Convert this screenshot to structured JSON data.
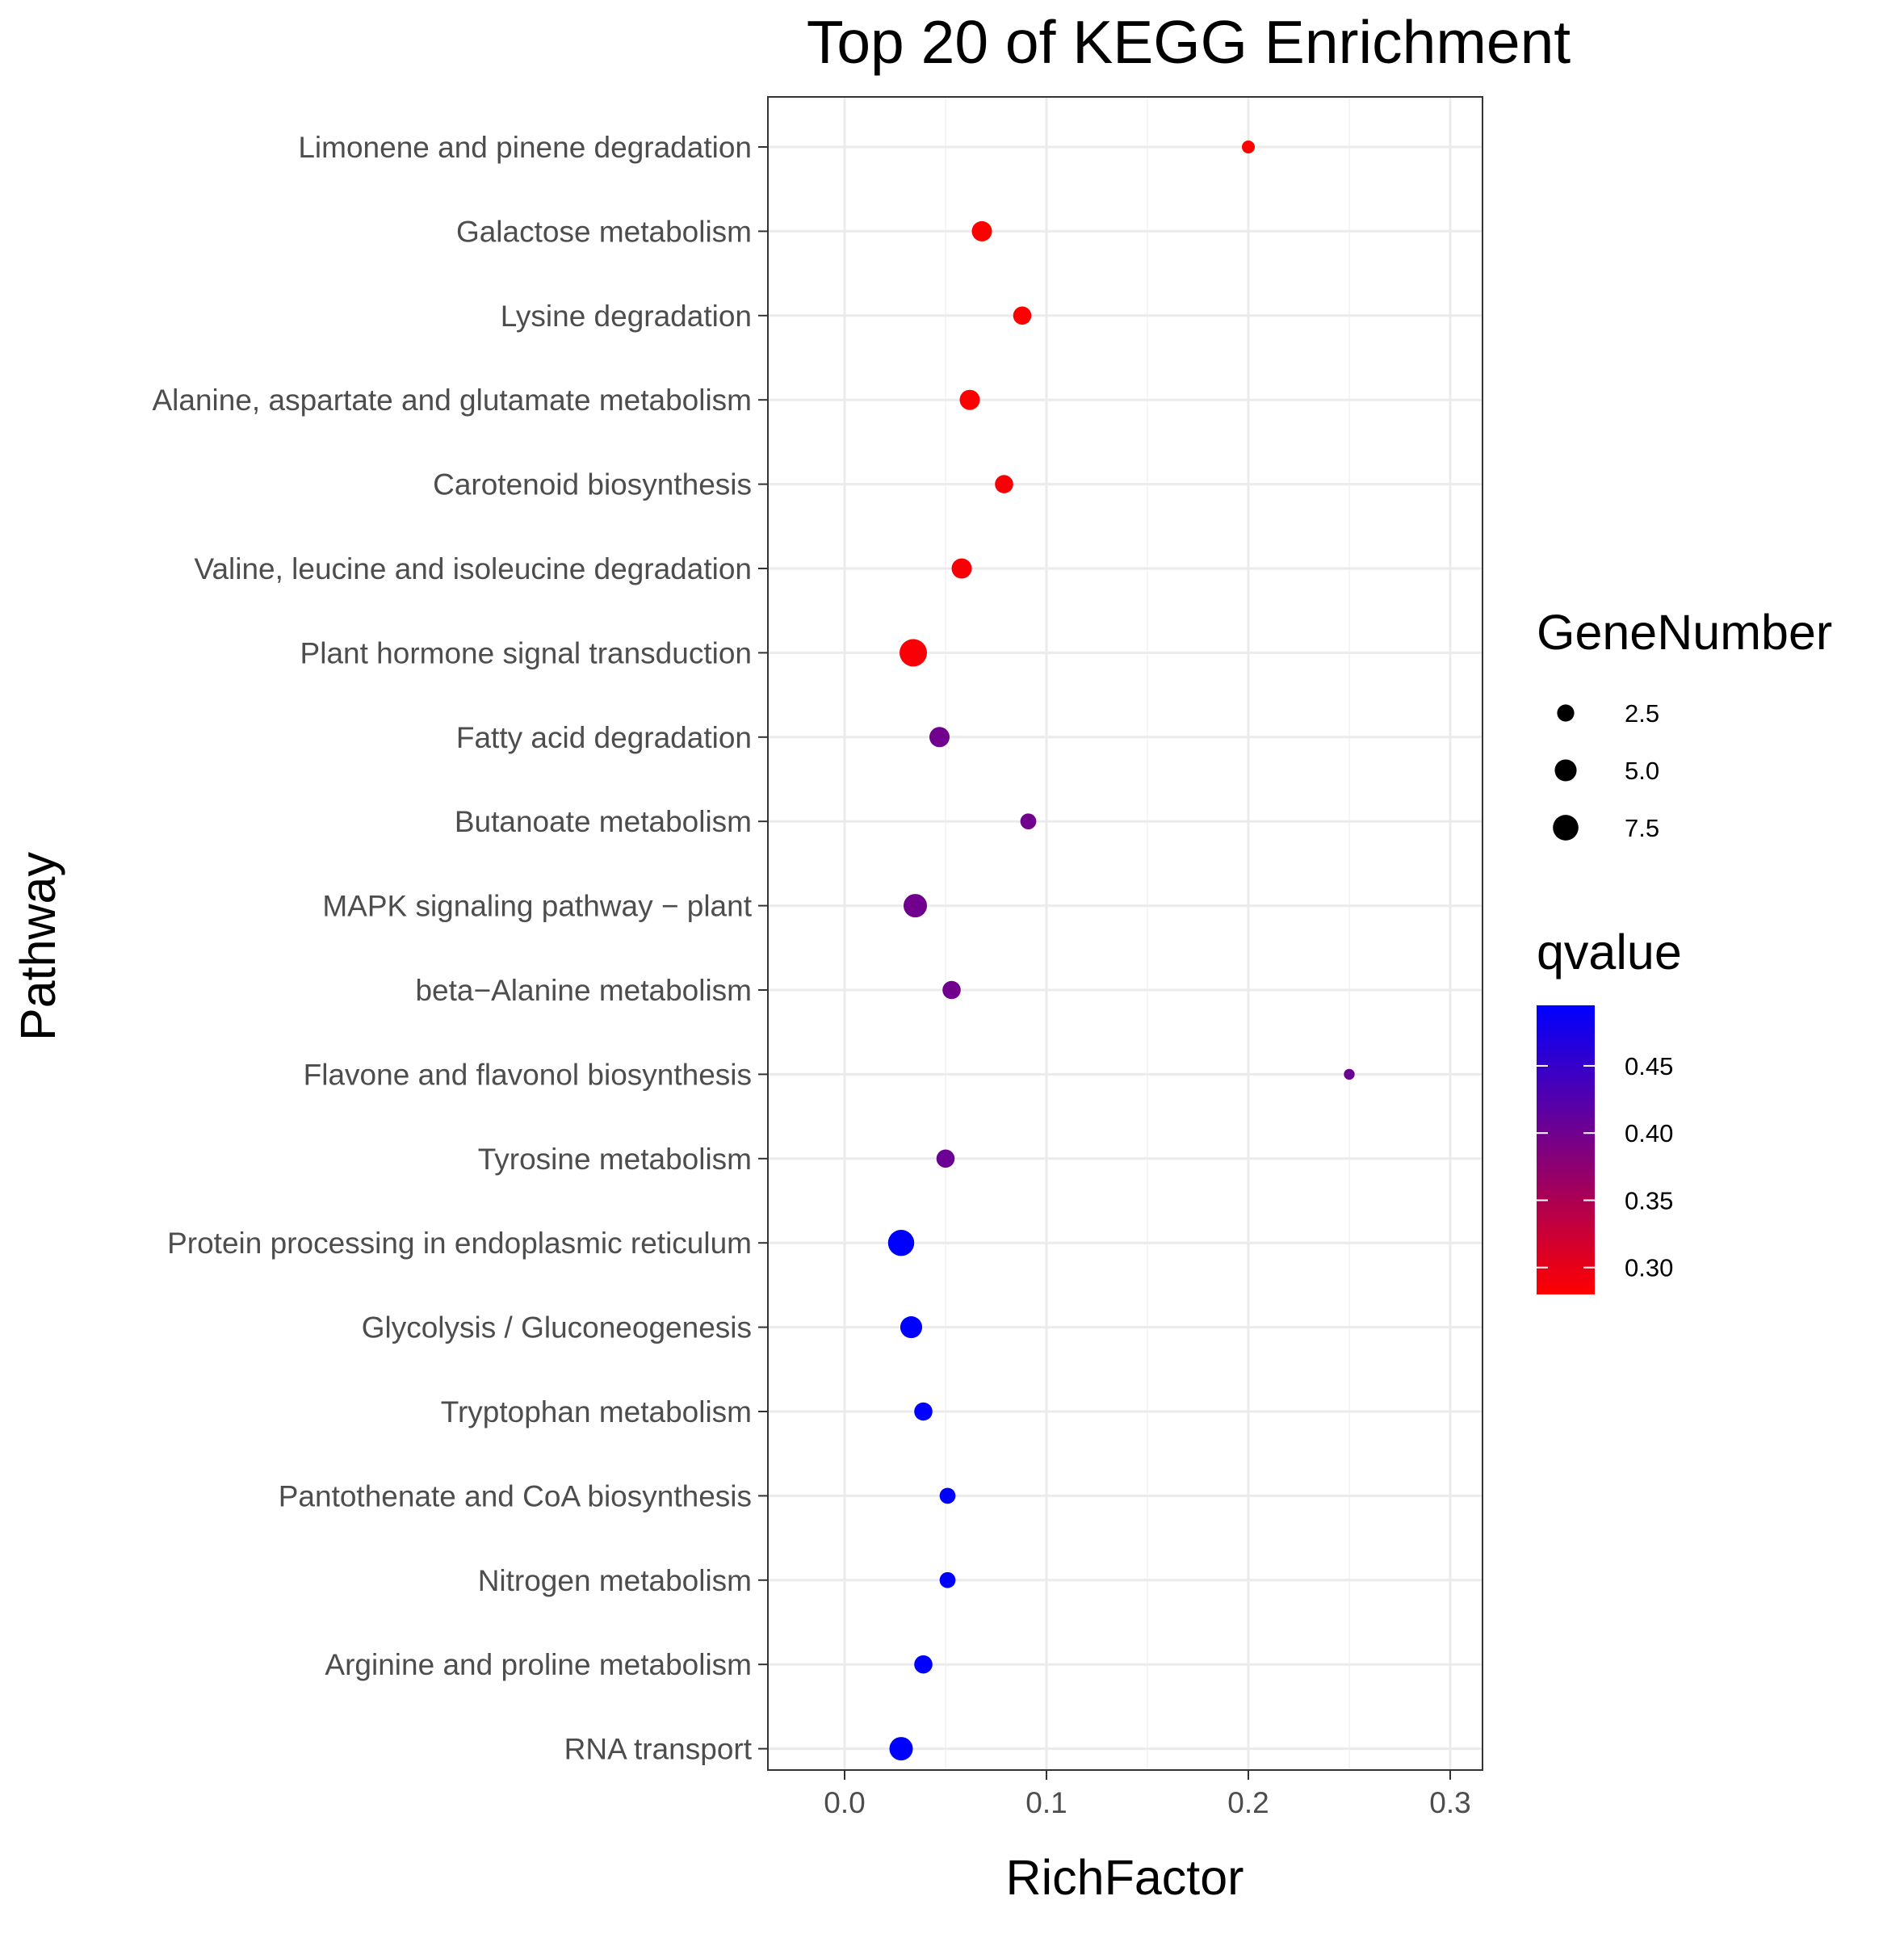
{
  "chart_data": {
    "type": "scatter",
    "title": "Top 20 of KEGG Enrichment",
    "xlabel": "RichFactor",
    "ylabel": "Pathway",
    "xlim": [
      -0.038,
      0.316
    ],
    "xticks": [
      0.0,
      0.1,
      0.2,
      0.3
    ],
    "xtick_labels": [
      "0.0",
      "0.1",
      "0.2",
      "0.3"
    ],
    "grid": true,
    "size_legend": {
      "title": "GeneNumber",
      "values": [
        2.5,
        5.0,
        7.5
      ],
      "labels": [
        "2.5",
        "5.0",
        "7.5"
      ]
    },
    "color_legend": {
      "title": "qvalue",
      "min": 0.28,
      "max": 0.495,
      "ticks": [
        0.3,
        0.35,
        0.4,
        0.45
      ],
      "tick_labels": [
        "0.30",
        "0.35",
        "0.40",
        "0.45"
      ],
      "low_color": "#ff0000",
      "high_color": "#0000ff"
    },
    "points": [
      {
        "pathway": "Limonene and pinene degradation",
        "richfactor": 0.2,
        "genes": 1,
        "qvalue": 0.28
      },
      {
        "pathway": "Galactose metabolism",
        "richfactor": 0.068,
        "genes": 4,
        "qvalue": 0.28
      },
      {
        "pathway": "Lysine degradation",
        "richfactor": 0.088,
        "genes": 3,
        "qvalue": 0.28
      },
      {
        "pathway": "Alanine, aspartate and glutamate metabolism",
        "richfactor": 0.062,
        "genes": 4,
        "qvalue": 0.28
      },
      {
        "pathway": "Carotenoid biosynthesis",
        "richfactor": 0.079,
        "genes": 3,
        "qvalue": 0.285
      },
      {
        "pathway": "Valine, leucine and isoleucine degradation",
        "richfactor": 0.058,
        "genes": 4,
        "qvalue": 0.285
      },
      {
        "pathway": "Plant hormone signal transduction",
        "richfactor": 0.034,
        "genes": 9,
        "qvalue": 0.285
      },
      {
        "pathway": "Fatty acid degradation",
        "richfactor": 0.047,
        "genes": 4,
        "qvalue": 0.4
      },
      {
        "pathway": "Butanoate metabolism",
        "richfactor": 0.091,
        "genes": 2,
        "qvalue": 0.4
      },
      {
        "pathway": "MAPK signaling pathway − plant",
        "richfactor": 0.035,
        "genes": 6,
        "qvalue": 0.4
      },
      {
        "pathway": "beta−Alanine metabolism",
        "richfactor": 0.053,
        "genes": 3,
        "qvalue": 0.4
      },
      {
        "pathway": "Flavone and flavonol biosynthesis",
        "richfactor": 0.25,
        "genes": 0.5,
        "qvalue": 0.405
      },
      {
        "pathway": "Tyrosine metabolism",
        "richfactor": 0.05,
        "genes": 3,
        "qvalue": 0.405
      },
      {
        "pathway": "Protein processing in endoplasmic reticulum",
        "richfactor": 0.028,
        "genes": 8,
        "qvalue": 0.495
      },
      {
        "pathway": "Glycolysis / Gluconeogenesis",
        "richfactor": 0.033,
        "genes": 5,
        "qvalue": 0.495
      },
      {
        "pathway": "Tryptophan metabolism",
        "richfactor": 0.039,
        "genes": 3,
        "qvalue": 0.495
      },
      {
        "pathway": "Pantothenate and CoA biosynthesis",
        "richfactor": 0.051,
        "genes": 2,
        "qvalue": 0.495
      },
      {
        "pathway": "Nitrogen metabolism",
        "richfactor": 0.051,
        "genes": 2,
        "qvalue": 0.495
      },
      {
        "pathway": "Arginine and proline metabolism",
        "richfactor": 0.039,
        "genes": 3,
        "qvalue": 0.495
      },
      {
        "pathway": "RNA transport",
        "richfactor": 0.028,
        "genes": 6,
        "qvalue": 0.495
      }
    ]
  }
}
